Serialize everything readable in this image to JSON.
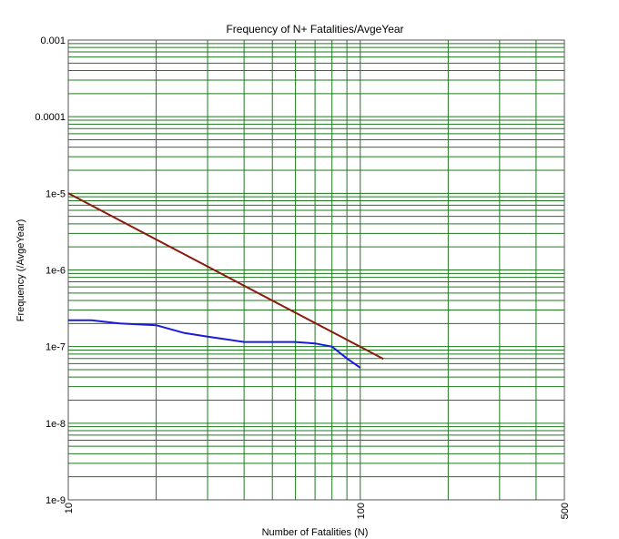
{
  "chart_data": {
    "type": "line",
    "title": "Frequency of N+ Fatalities/AvgeYear",
    "xlabel": "Number of Fatalities (N)",
    "ylabel": "Frequency (/AvgeYear)",
    "x_scale": "log",
    "y_scale": "log",
    "xlim": [
      10,
      500
    ],
    "ylim": [
      1e-09,
      0.001
    ],
    "x_tick_labels": [
      "10",
      "100",
      "500"
    ],
    "x_tick_values": [
      10,
      100,
      500
    ],
    "y_tick_labels": [
      "1e-9",
      "1e-8",
      "1e-7",
      "1e-6",
      "1e-5",
      "0.0001",
      "0.001"
    ],
    "y_tick_values": [
      1e-09,
      1e-08,
      1e-07,
      1e-06,
      1e-05,
      0.0001,
      0.001
    ],
    "grid": true,
    "series": [
      {
        "color": "#8b1a0e",
        "points": [
          [
            10,
            1e-05
          ],
          [
            120,
            6.9e-08
          ]
        ]
      },
      {
        "color": "#1a1adb",
        "points": [
          [
            10,
            2.2e-07
          ],
          [
            12,
            2.2e-07
          ],
          [
            15,
            2e-07
          ],
          [
            20,
            1.9e-07
          ],
          [
            25,
            1.5e-07
          ],
          [
            30,
            1.35e-07
          ],
          [
            40,
            1.15e-07
          ],
          [
            50,
            1.15e-07
          ],
          [
            60,
            1.15e-07
          ],
          [
            70,
            1.1e-07
          ],
          [
            80,
            1e-07
          ],
          [
            90,
            7e-08
          ],
          [
            100,
            5.3e-08
          ]
        ]
      }
    ],
    "colors": {
      "grid": "#1f7a1f",
      "frame": "#555555",
      "text": "#000000"
    }
  }
}
